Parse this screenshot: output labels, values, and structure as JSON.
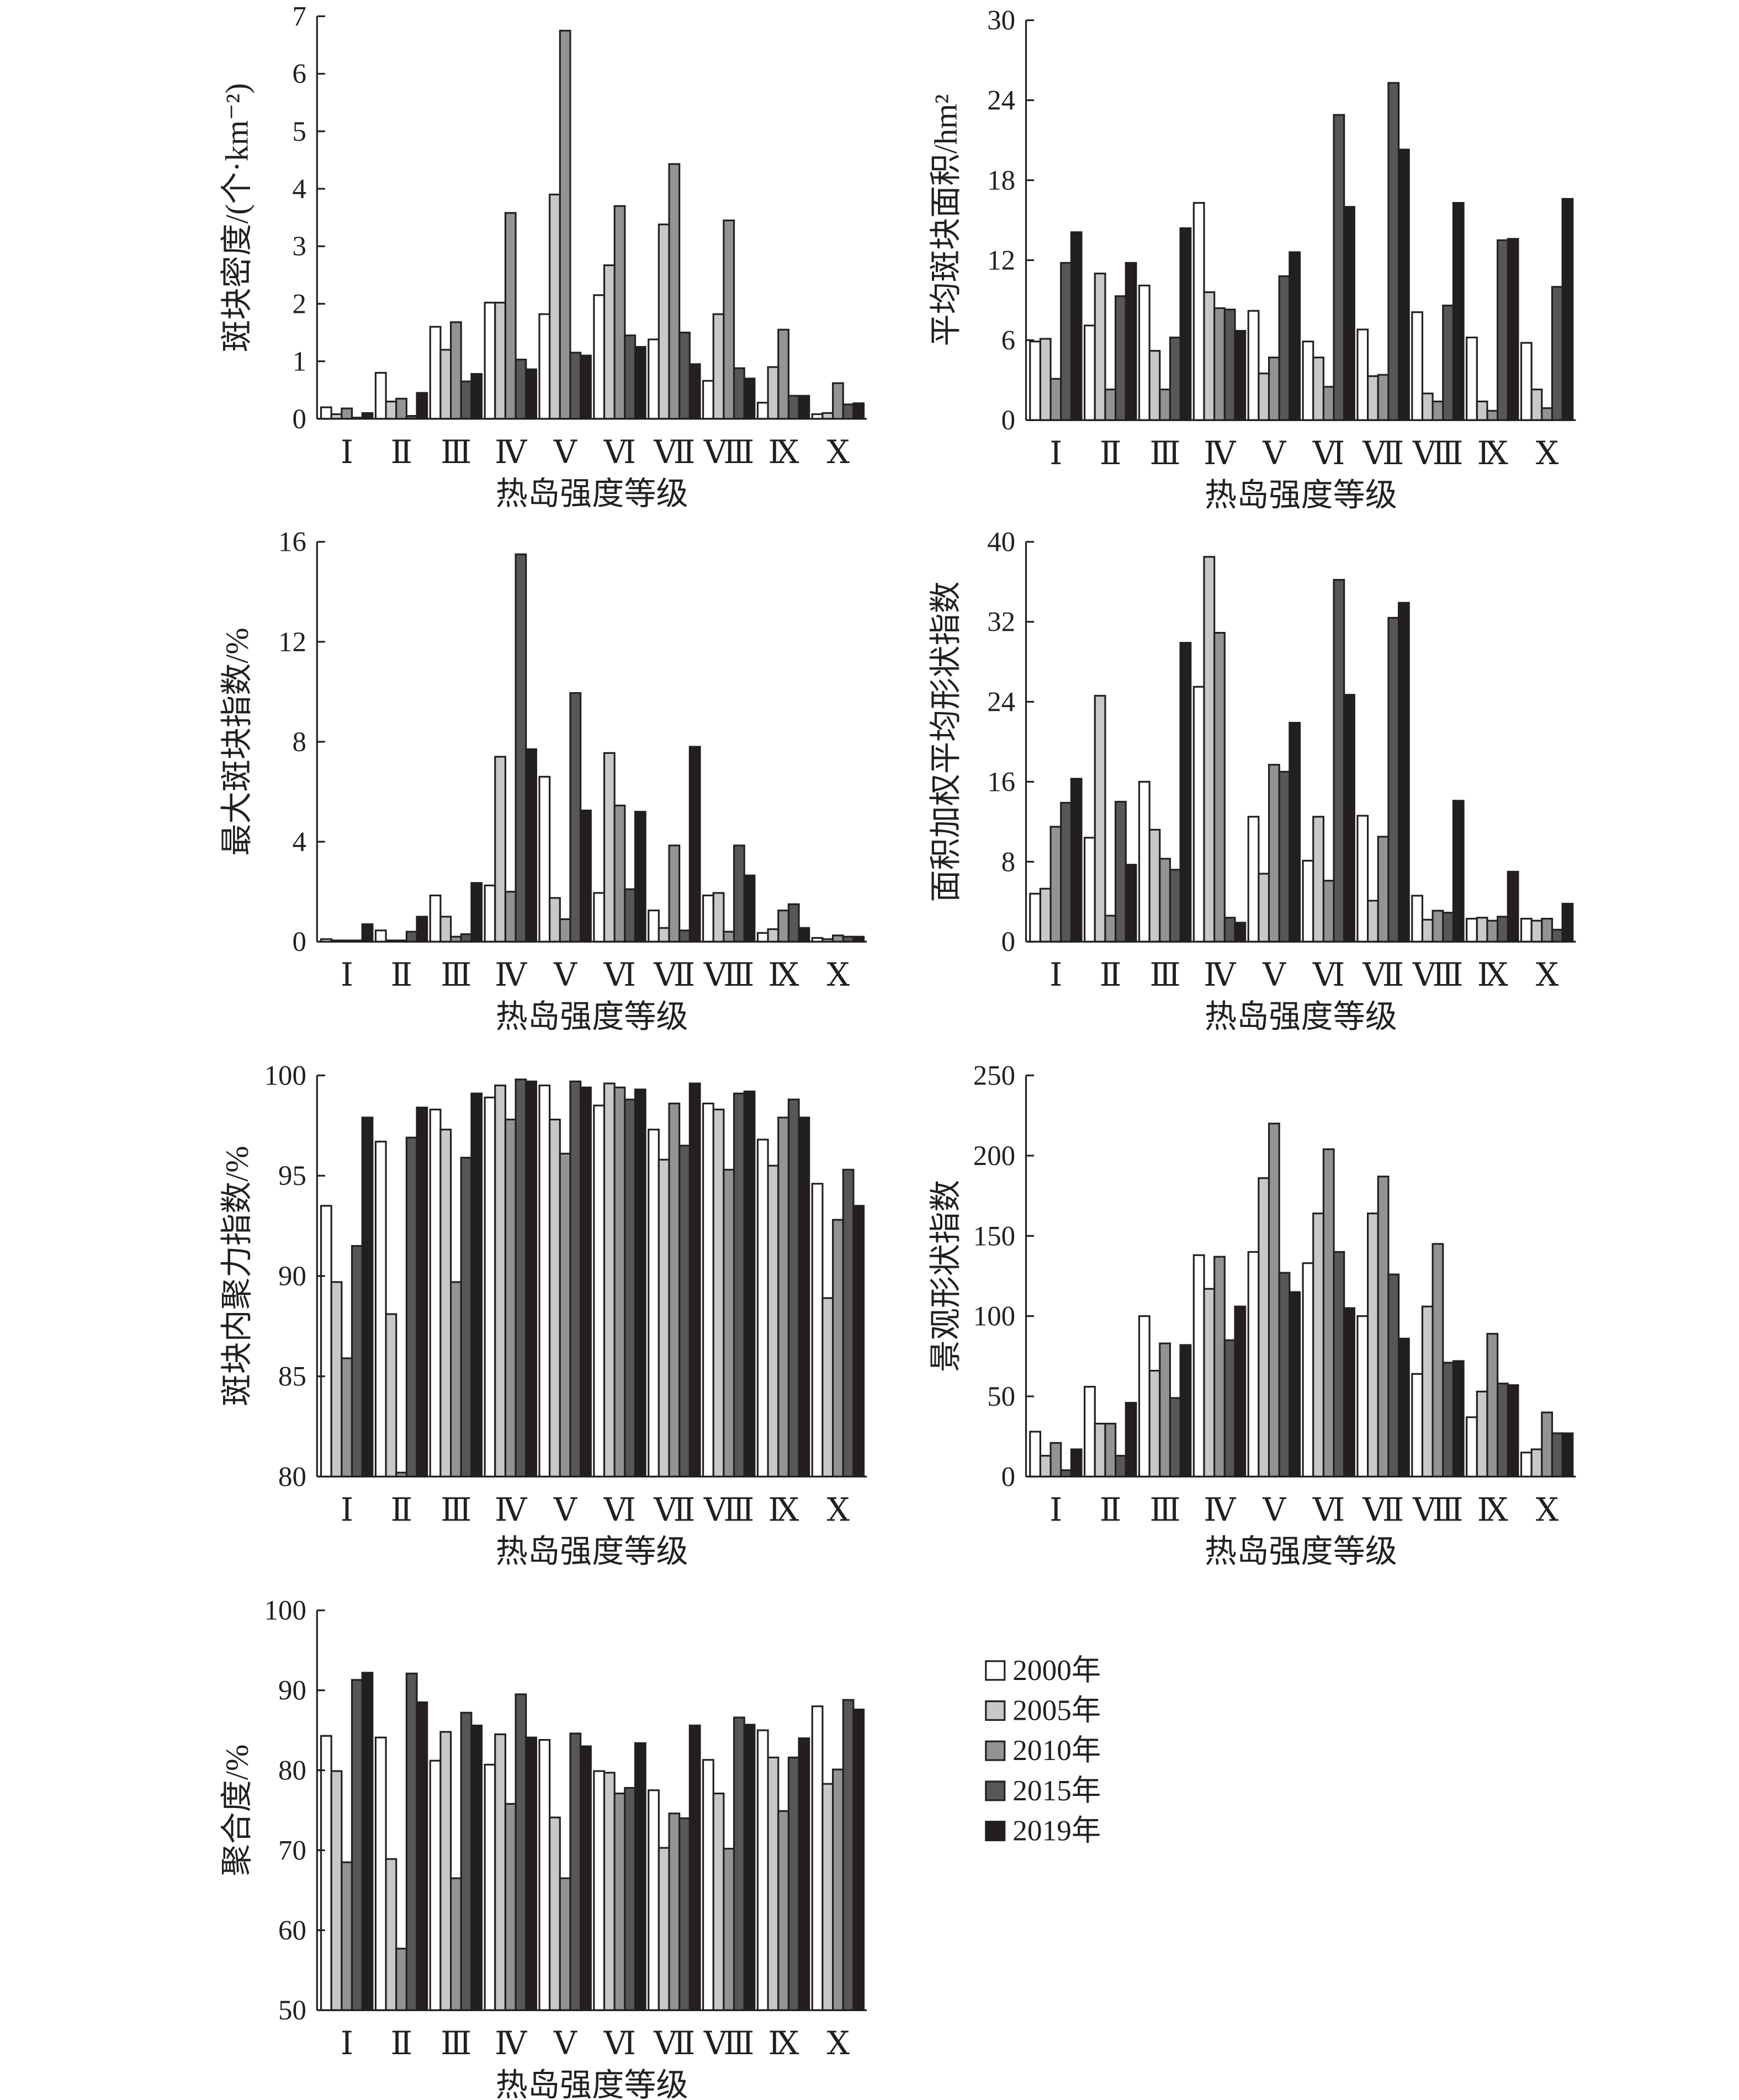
{
  "chart_data": [
    {
      "type": "bar",
      "ylabel": "斑块密度/(个·km⁻²)",
      "xlabel": "热岛强度等级",
      "ylim": [
        0,
        7
      ],
      "yticks": [
        0,
        1,
        2,
        3,
        4,
        5,
        6,
        7
      ],
      "categories": [
        "Ⅰ",
        "Ⅱ",
        "Ⅲ",
        "Ⅳ",
        "Ⅴ",
        "Ⅵ",
        "Ⅶ",
        "Ⅷ",
        "Ⅸ",
        "Ⅹ"
      ],
      "series": [
        {
          "name": "2000年",
          "values": [
            0.2,
            0.8,
            1.6,
            2.02,
            1.82,
            2.15,
            1.38,
            0.66,
            0.28,
            0.08
          ]
        },
        {
          "name": "2005年",
          "values": [
            0.08,
            0.3,
            1.2,
            2.02,
            3.9,
            2.67,
            3.38,
            1.82,
            0.9,
            0.1
          ]
        },
        {
          "name": "2010年",
          "values": [
            0.18,
            0.35,
            1.68,
            3.58,
            6.75,
            3.7,
            4.43,
            3.45,
            1.55,
            0.62
          ]
        },
        {
          "name": "2015年",
          "values": [
            0.02,
            0.05,
            0.65,
            1.03,
            1.15,
            1.45,
            1.5,
            0.88,
            0.4,
            0.25
          ]
        },
        {
          "name": "2019年",
          "values": [
            0.1,
            0.45,
            0.78,
            0.86,
            1.1,
            1.25,
            0.95,
            0.7,
            0.4,
            0.27
          ]
        }
      ]
    },
    {
      "type": "bar",
      "ylabel": "平均斑块面积/hm²",
      "xlabel": "热岛强度等级",
      "ylim": [
        0,
        30
      ],
      "yticks": [
        0,
        6,
        12,
        18,
        24,
        30
      ],
      "categories": [
        "Ⅰ",
        "Ⅱ",
        "Ⅲ",
        "Ⅳ",
        "Ⅴ",
        "Ⅵ",
        "Ⅶ",
        "Ⅷ",
        "Ⅸ",
        "Ⅹ"
      ],
      "series": [
        {
          "name": "2000年",
          "values": [
            5.9,
            7.1,
            10.1,
            16.3,
            8.2,
            5.9,
            6.8,
            8.1,
            6.2,
            5.8
          ]
        },
        {
          "name": "2005年",
          "values": [
            6.1,
            11.0,
            5.2,
            9.6,
            3.5,
            4.7,
            3.3,
            2.0,
            1.4,
            2.3
          ]
        },
        {
          "name": "2010年",
          "values": [
            3.1,
            2.3,
            2.3,
            8.4,
            4.7,
            2.5,
            3.4,
            1.4,
            0.7,
            0.9
          ]
        },
        {
          "name": "2015年",
          "values": [
            11.8,
            9.3,
            6.2,
            8.3,
            10.8,
            22.9,
            25.3,
            8.6,
            13.5,
            10.0
          ]
        },
        {
          "name": "2019年",
          "values": [
            14.1,
            11.8,
            14.4,
            6.7,
            12.6,
            16.0,
            20.3,
            16.3,
            13.6,
            16.6
          ]
        }
      ]
    },
    {
      "type": "bar",
      "ylabel": "最大斑块指数/%",
      "xlabel": "热岛强度等级",
      "ylim": [
        0,
        16
      ],
      "yticks": [
        0,
        4,
        8,
        12,
        16
      ],
      "categories": [
        "Ⅰ",
        "Ⅱ",
        "Ⅲ",
        "Ⅳ",
        "Ⅴ",
        "Ⅵ",
        "Ⅶ",
        "Ⅷ",
        "Ⅸ",
        "Ⅹ"
      ],
      "series": [
        {
          "name": "2000年",
          "values": [
            0.1,
            0.45,
            1.85,
            2.25,
            6.6,
            1.95,
            1.25,
            1.85,
            0.35,
            0.15
          ]
        },
        {
          "name": "2005年",
          "values": [
            0.05,
            0.05,
            1.0,
            7.4,
            1.75,
            7.55,
            0.55,
            1.95,
            0.5,
            0.1
          ]
        },
        {
          "name": "2010年",
          "values": [
            0.05,
            0.05,
            0.2,
            2.0,
            0.9,
            5.45,
            3.85,
            0.4,
            1.25,
            0.25
          ]
        },
        {
          "name": "2015年",
          "values": [
            0.05,
            0.4,
            0.3,
            15.5,
            9.95,
            2.1,
            0.45,
            3.85,
            1.5,
            0.2
          ]
        },
        {
          "name": "2019年",
          "values": [
            0.7,
            1.0,
            2.35,
            7.7,
            5.25,
            5.2,
            7.8,
            2.65,
            0.55,
            0.2
          ]
        }
      ]
    },
    {
      "type": "bar",
      "ylabel": "面积加权平均形状指数",
      "xlabel": "热岛强度等级",
      "ylim": [
        0,
        40
      ],
      "yticks": [
        0,
        8,
        16,
        24,
        32,
        40
      ],
      "categories": [
        "Ⅰ",
        "Ⅱ",
        "Ⅲ",
        "Ⅳ",
        "Ⅴ",
        "Ⅵ",
        "Ⅶ",
        "Ⅷ",
        "Ⅸ",
        "Ⅹ"
      ],
      "series": [
        {
          "name": "2000年",
          "values": [
            4.8,
            10.4,
            16.0,
            25.5,
            12.5,
            8.1,
            12.6,
            4.6,
            2.3,
            2.3
          ]
        },
        {
          "name": "2005年",
          "values": [
            5.3,
            24.6,
            11.2,
            38.5,
            6.8,
            12.5,
            4.1,
            2.2,
            2.4,
            2.1
          ]
        },
        {
          "name": "2010年",
          "values": [
            11.5,
            2.6,
            8.3,
            30.9,
            17.7,
            6.1,
            10.5,
            3.1,
            2.1,
            2.3
          ]
        },
        {
          "name": "2015年",
          "values": [
            13.9,
            14.0,
            7.2,
            2.4,
            17.0,
            36.2,
            32.4,
            2.9,
            2.5,
            1.2
          ]
        },
        {
          "name": "2019年",
          "values": [
            16.3,
            7.7,
            29.9,
            1.9,
            21.9,
            24.7,
            33.9,
            14.1,
            7.0,
            3.8
          ]
        }
      ]
    },
    {
      "type": "bar",
      "ylabel": "斑块内聚力指数/%",
      "xlabel": "热岛强度等级",
      "ylim": [
        80,
        100
      ],
      "yticks": [
        80,
        85,
        90,
        95,
        100
      ],
      "categories": [
        "Ⅰ",
        "Ⅱ",
        "Ⅲ",
        "Ⅳ",
        "Ⅴ",
        "Ⅵ",
        "Ⅶ",
        "Ⅷ",
        "Ⅸ",
        "Ⅹ"
      ],
      "series": [
        {
          "name": "2000年",
          "values": [
            93.5,
            96.7,
            98.3,
            98.9,
            99.5,
            98.5,
            97.3,
            98.6,
            96.8,
            94.6
          ]
        },
        {
          "name": "2005年",
          "values": [
            89.7,
            88.1,
            97.3,
            99.5,
            97.8,
            99.6,
            95.8,
            98.3,
            95.5,
            88.9
          ]
        },
        {
          "name": "2010年",
          "values": [
            85.9,
            80.2,
            89.7,
            97.8,
            96.1,
            99.4,
            98.6,
            95.3,
            97.9,
            92.8
          ]
        },
        {
          "name": "2015年",
          "values": [
            91.5,
            96.9,
            95.9,
            99.8,
            99.7,
            98.8,
            96.5,
            99.1,
            98.8,
            95.3
          ]
        },
        {
          "name": "2019年",
          "values": [
            97.9,
            98.4,
            99.1,
            99.7,
            99.4,
            99.3,
            99.6,
            99.2,
            97.9,
            93.5
          ]
        }
      ]
    },
    {
      "type": "bar",
      "ylabel": "景观形状指数",
      "xlabel": "热岛强度等级",
      "ylim": [
        0,
        250
      ],
      "yticks": [
        0,
        50,
        100,
        150,
        200,
        250
      ],
      "categories": [
        "Ⅰ",
        "Ⅱ",
        "Ⅲ",
        "Ⅳ",
        "Ⅴ",
        "Ⅵ",
        "Ⅶ",
        "Ⅷ",
        "Ⅸ",
        "Ⅹ"
      ],
      "series": [
        {
          "name": "2000年",
          "values": [
            28,
            56,
            100,
            138,
            140,
            133,
            100,
            64,
            37,
            15
          ]
        },
        {
          "name": "2005年",
          "values": [
            13,
            33,
            66,
            117,
            186,
            164,
            164,
            106,
            53,
            17
          ]
        },
        {
          "name": "2010年",
          "values": [
            21,
            33,
            83,
            137,
            220,
            204,
            187,
            145,
            89,
            40
          ]
        },
        {
          "name": "2015年",
          "values": [
            4,
            13,
            49,
            85,
            127,
            140,
            126,
            71,
            58,
            27
          ]
        },
        {
          "name": "2019年",
          "values": [
            17,
            46,
            82,
            106,
            115,
            105,
            86,
            72,
            57,
            27
          ]
        }
      ]
    },
    {
      "type": "bar",
      "ylabel": "聚合度/%",
      "xlabel": "热岛强度等级",
      "ylim": [
        50,
        100
      ],
      "yticks": [
        50,
        60,
        70,
        80,
        90,
        100
      ],
      "categories": [
        "Ⅰ",
        "Ⅱ",
        "Ⅲ",
        "Ⅳ",
        "Ⅴ",
        "Ⅵ",
        "Ⅶ",
        "Ⅷ",
        "Ⅸ",
        "Ⅹ"
      ],
      "series": [
        {
          "name": "2000年",
          "values": [
            84.3,
            84.1,
            81.2,
            80.7,
            83.8,
            79.9,
            77.5,
            81.3,
            85.0,
            88.0
          ]
        },
        {
          "name": "2005年",
          "values": [
            79.9,
            68.9,
            84.8,
            84.5,
            74.1,
            79.7,
            70.3,
            77.1,
            81.6,
            78.3
          ]
        },
        {
          "name": "2010年",
          "values": [
            68.5,
            57.7,
            66.5,
            75.8,
            66.5,
            77.1,
            74.6,
            70.2,
            74.9,
            80.1
          ]
        },
        {
          "name": "2015年",
          "values": [
            91.3,
            92.1,
            87.2,
            89.5,
            84.6,
            77.8,
            74.0,
            86.6,
            81.6,
            88.8
          ]
        },
        {
          "name": "2019年",
          "values": [
            92.2,
            88.5,
            85.6,
            84.1,
            83.0,
            83.4,
            85.6,
            85.7,
            84.0,
            87.6
          ]
        }
      ]
    }
  ],
  "legend": {
    "placement": "bottom-right",
    "items": [
      "2000年",
      "2005年",
      "2010年",
      "2015年",
      "2019年"
    ]
  },
  "colors": {
    "2000年": "#ffffff",
    "2005年": "#c8c8c8",
    "2010年": "#939393",
    "2015年": "#575757",
    "2019年": "#231f20",
    "stroke": "#231f20"
  }
}
